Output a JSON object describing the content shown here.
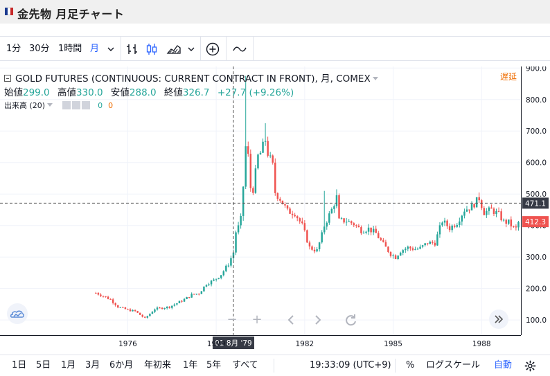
{
  "app": {
    "title": "金先物 月足チャート",
    "flag_colors": [
      "#1a3a8f",
      "#ffffff",
      "#c62828"
    ]
  },
  "toolbar": {
    "intervals": [
      "1分",
      "30分",
      "1時間",
      "月"
    ],
    "active_interval": "月"
  },
  "legend": {
    "symbol": "GOLD FUTURES (CONTINUOUS: CURRENT CONTRACT IN FRONT), 月, COMEX",
    "open_label": "始値",
    "open_value": "299.0",
    "high_label": "高値",
    "high_value": "330.0",
    "low_label": "安値",
    "low_value": "288.0",
    "close_label": "終値",
    "close_value": "326.7",
    "change": "+27.7 (+9.26%)",
    "volume_label": "出来高 (20)",
    "volume_value_1": "0",
    "volume_value_2": "0",
    "delayed": "遅延"
  },
  "crosshair": {
    "date_label": "01 8月 '79",
    "price_label": "471.1",
    "price": 471.1,
    "date": "1979-08"
  },
  "last_price": {
    "label": "412.3",
    "value": 412.3
  },
  "colors": {
    "up": "#26a69a",
    "down": "#ef5350",
    "last_price_bg": "#ef5350",
    "crosshair_label_bg": "#363a45",
    "accent": "#2962ff",
    "delayed": "#ef6c00"
  },
  "chart_data": {
    "type": "candlestick",
    "x_axis": {
      "ticks": [
        "1976",
        "1979",
        "1982",
        "1985",
        "1988"
      ],
      "range": [
        "1971-09",
        "1989-05"
      ]
    },
    "y_axis": {
      "ticks": [
        "900.0",
        "800.0",
        "700.0",
        "600.0",
        "500.0",
        "400.0",
        "300.0",
        "200.0",
        "100.0"
      ],
      "range": [
        52,
        905
      ]
    },
    "price_path": [
      [
        "1974-12",
        186
      ],
      [
        "1975-02",
        180
      ],
      [
        "1975-06",
        165
      ],
      [
        "1975-09",
        142
      ],
      [
        "1976-01",
        132
      ],
      [
        "1976-04",
        128
      ],
      [
        "1976-08",
        105
      ],
      [
        "1976-12",
        135
      ],
      [
        "1977-06",
        142
      ],
      [
        "1977-12",
        165
      ],
      [
        "1978-03",
        180
      ],
      [
        "1978-06",
        185
      ],
      [
        "1978-09",
        215
      ],
      [
        "1978-12",
        226
      ],
      [
        "1979-03",
        245
      ],
      [
        "1979-06",
        278
      ],
      [
        "1979-08",
        315
      ],
      [
        "1979-09",
        380
      ],
      [
        "1979-10",
        395
      ],
      [
        "1979-11",
        420
      ],
      [
        "1979-12",
        525
      ],
      [
        "1980-01",
        650
      ],
      [
        "1980-02",
        620
      ],
      [
        "1980-03",
        520
      ],
      [
        "1980-04",
        515
      ],
      [
        "1980-06",
        620
      ],
      [
        "1980-07",
        630
      ],
      [
        "1980-09",
        672
      ],
      [
        "1980-10",
        630
      ],
      [
        "1980-12",
        590
      ],
      [
        "1981-01",
        505
      ],
      [
        "1981-03",
        485
      ],
      [
        "1981-06",
        445
      ],
      [
        "1981-09",
        440
      ],
      [
        "1981-12",
        400
      ],
      [
        "1982-03",
        330
      ],
      [
        "1982-06",
        320
      ],
      [
        "1982-08",
        370
      ],
      [
        "1982-09",
        400
      ],
      [
        "1982-12",
        450
      ],
      [
        "1983-02",
        490
      ],
      [
        "1983-03",
        415
      ],
      [
        "1983-06",
        415
      ],
      [
        "1983-09",
        405
      ],
      [
        "1983-12",
        385
      ],
      [
        "1984-03",
        390
      ],
      [
        "1984-06",
        375
      ],
      [
        "1984-09",
        340
      ],
      [
        "1984-12",
        310
      ],
      [
        "1985-02",
        300
      ],
      [
        "1985-04",
        320
      ],
      [
        "1985-07",
        330
      ],
      [
        "1985-10",
        325
      ],
      [
        "1985-12",
        328
      ],
      [
        "1986-03",
        345
      ],
      [
        "1986-06",
        345
      ],
      [
        "1986-09",
        415
      ],
      [
        "1986-12",
        392
      ],
      [
        "1987-03",
        410
      ],
      [
        "1987-06",
        450
      ],
      [
        "1987-09",
        460
      ],
      [
        "1987-12",
        487
      ],
      [
        "1988-02",
        442
      ],
      [
        "1988-05",
        450
      ],
      [
        "1988-08",
        435
      ],
      [
        "1988-10",
        412
      ],
      [
        "1988-12",
        410
      ],
      [
        "1989-02",
        392
      ],
      [
        "1989-03",
        390
      ],
      [
        "1989-04",
        410
      ]
    ],
    "spikes": [
      [
        "1980-01",
        875
      ],
      [
        "1980-09",
        725
      ],
      [
        "1982-09",
        510
      ],
      [
        "1983-02",
        515
      ],
      [
        "1987-12",
        505
      ]
    ]
  },
  "bottombar": {
    "ranges": [
      "1日",
      "5日",
      "1月",
      "3月",
      "6か月",
      "年初来",
      "1年",
      "5年",
      "すべて"
    ],
    "time": "19:33:09 (UTC+9)",
    "percent": "%",
    "log_scale": "ログスケール",
    "auto": "自動"
  }
}
